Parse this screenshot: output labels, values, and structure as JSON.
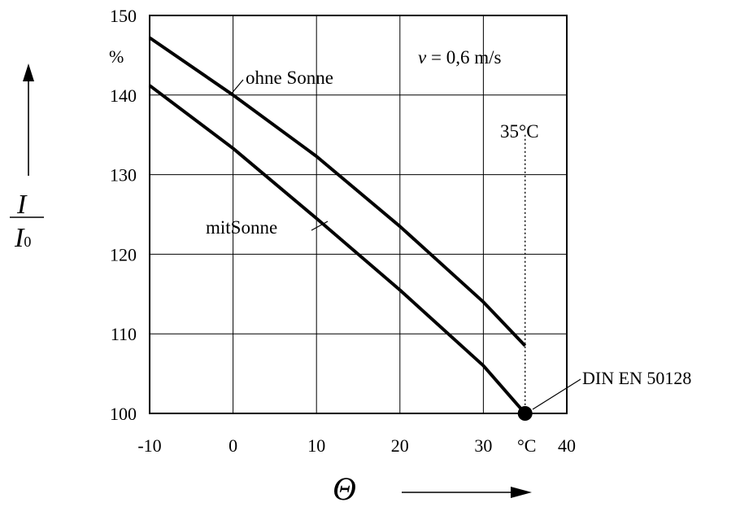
{
  "chart_data": {
    "type": "line",
    "title": "",
    "xlabel": "Θ",
    "ylabel_num": "I",
    "ylabel_den": "I",
    "ylabel_den_sub": "0",
    "y_unit": "%",
    "x_unit": "°C",
    "xlim": [
      -10,
      40
    ],
    "ylim": [
      100,
      150
    ],
    "x_ticks": [
      -10,
      0,
      10,
      20,
      30,
      40
    ],
    "y_ticks": [
      100,
      110,
      120,
      130,
      140,
      150
    ],
    "grid": true,
    "annotation_velocity": {
      "symbol": "v",
      "text": " = 0,6 m/s"
    },
    "series": [
      {
        "name": "ohne Sonne",
        "x": [
          -10,
          0,
          10,
          20,
          30,
          35
        ],
        "y": [
          147.2,
          140.0,
          132.3,
          123.5,
          114.0,
          108.5
        ]
      },
      {
        "name": "mitSonne",
        "x": [
          -10,
          0,
          10,
          20,
          30,
          35
        ],
        "y": [
          141.2,
          133.3,
          124.5,
          115.5,
          106.0,
          100.0
        ]
      }
    ],
    "reference_line": {
      "x": 35,
      "y_top": 135,
      "label": "35°C"
    },
    "reference_point": {
      "x": 35,
      "y": 100,
      "label": "DIN EN 50128"
    }
  }
}
